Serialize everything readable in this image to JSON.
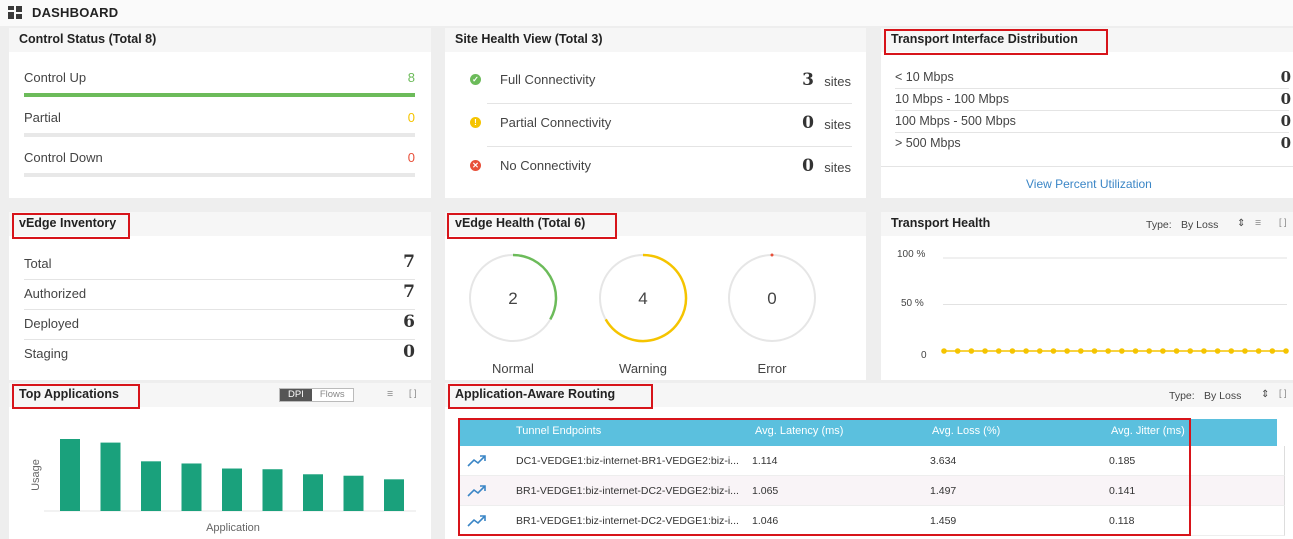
{
  "header": {
    "title": "DASHBOARD",
    "icon": "dashboard-grid-icon"
  },
  "control_status": {
    "title": "Control Status (Total 8)",
    "rows": [
      {
        "label": "Control Up",
        "value": "8",
        "color": "#6cbb5a",
        "fill": 1.0
      },
      {
        "label": "Partial",
        "value": "0",
        "color": "#f5c400",
        "fill": 0
      },
      {
        "label": "Control Down",
        "value": "0",
        "color": "#e8503a",
        "fill": 0
      }
    ]
  },
  "site_health": {
    "title": "Site Health View (Total 3)",
    "unit": "sites",
    "rows": [
      {
        "label": "Full Connectivity",
        "value": "3",
        "icon": "check-circle-icon",
        "color": "#6cbb5a"
      },
      {
        "label": "Partial Connectivity",
        "value": "0",
        "icon": "warning-circle-icon",
        "color": "#f5c400"
      },
      {
        "label": "No Connectivity",
        "value": "0",
        "icon": "error-circle-icon",
        "color": "#e8503a"
      }
    ]
  },
  "transport_interface": {
    "title": "Transport Interface Distribution",
    "rows": [
      {
        "label": "< 10 Mbps",
        "value": "0"
      },
      {
        "label": "10 Mbps - 100 Mbps",
        "value": "0"
      },
      {
        "label": "100 Mbps - 500 Mbps",
        "value": "0"
      },
      {
        "label": "> 500 Mbps",
        "value": "0"
      }
    ],
    "link": "View Percent Utilization"
  },
  "vedge_inventory": {
    "title": "vEdge Inventory",
    "rows": [
      {
        "label": "Total",
        "value": "7"
      },
      {
        "label": "Authorized",
        "value": "7"
      },
      {
        "label": "Deployed",
        "value": "6"
      },
      {
        "label": "Staging",
        "value": "0"
      }
    ]
  },
  "vedge_health": {
    "title": "vEdge Health (Total 6)",
    "gauges": [
      {
        "label": "Normal",
        "value": "2",
        "color": "#6cbb5a",
        "fraction": 0.333
      },
      {
        "label": "Warning",
        "value": "4",
        "color": "#f5c400",
        "fraction": 0.667
      },
      {
        "label": "Error",
        "value": "0",
        "color": "#e8503a",
        "fraction": 0
      }
    ]
  },
  "transport_health": {
    "title": "Transport Health",
    "type_label": "Type:",
    "type_value": "By Loss",
    "y_ticks": [
      "100 %",
      "50 %",
      "0"
    ],
    "points_value": 0,
    "point_count": 26,
    "point_color": "#f5c400"
  },
  "top_apps": {
    "title": "Top Applications",
    "toggle": [
      "DPI",
      "Flows"
    ],
    "ylabel": "Usage",
    "xlabel": "Application",
    "bar_color": "#1aa17c"
  },
  "chart_data": {
    "type": "bar",
    "title": "Top Applications",
    "xlabel": "Application",
    "ylabel": "Usage",
    "categories": [
      "",
      "",
      "",
      "",
      "",
      "",
      "",
      "",
      ""
    ],
    "values": [
      100,
      95,
      69,
      66,
      59,
      58,
      51,
      49,
      44
    ],
    "ylim": [
      0,
      100
    ]
  },
  "app_routing": {
    "title": "Application-Aware Routing",
    "type_label": "Type:",
    "type_value": "By Loss",
    "columns": [
      "Tunnel Endpoints",
      "Avg. Latency (ms)",
      "Avg. Loss (%)",
      "Avg. Jitter (ms)"
    ],
    "rows": [
      {
        "endpoint": "DC1-VEDGE1:biz-internet-BR1-VEDGE2:biz-i...",
        "latency": "1.114",
        "loss": "3.634",
        "jitter": "0.185"
      },
      {
        "endpoint": "BR1-VEDGE1:biz-internet-DC2-VEDGE2:biz-i...",
        "latency": "1.065",
        "loss": "1.497",
        "jitter": "0.141"
      },
      {
        "endpoint": "BR1-VEDGE1:biz-internet-DC2-VEDGE1:biz-i...",
        "latency": "1.046",
        "loss": "1.459",
        "jitter": "0.118"
      }
    ]
  }
}
